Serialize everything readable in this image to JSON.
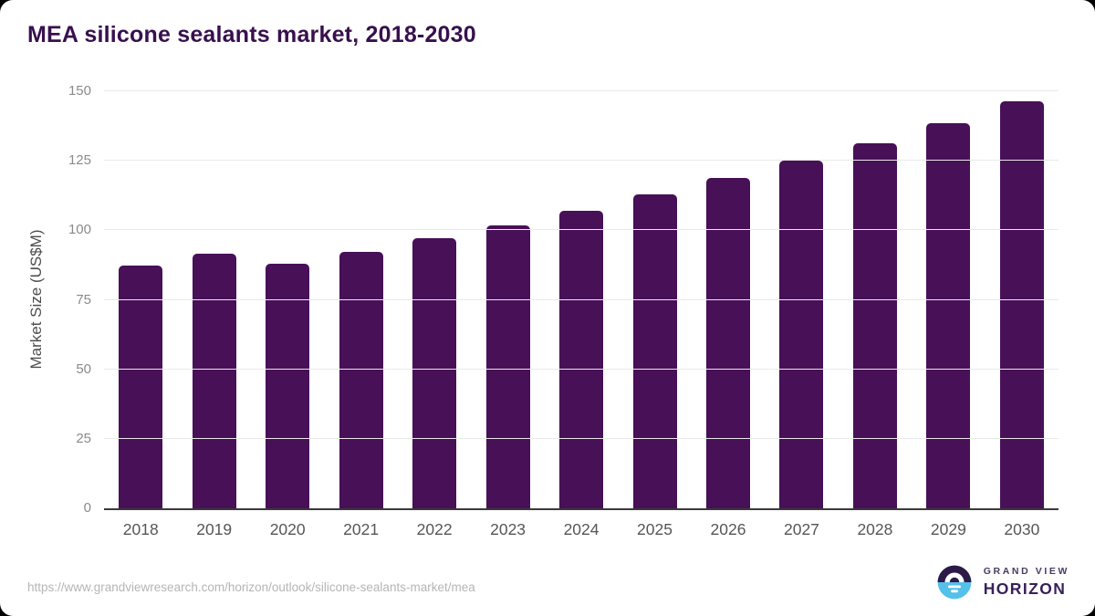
{
  "title": "MEA silicone sealants market, 2018-2030",
  "chart_data": {
    "type": "bar",
    "title": "MEA silicone sealants market, 2018-2030",
    "categories": [
      "2018",
      "2019",
      "2020",
      "2021",
      "2022",
      "2023",
      "2024",
      "2025",
      "2026",
      "2027",
      "2028",
      "2029",
      "2030"
    ],
    "values": [
      87.3,
      91.5,
      88.0,
      92.2,
      97.1,
      101.9,
      107.0,
      112.8,
      118.7,
      124.9,
      131.4,
      138.6,
      146.3
    ],
    "xlabel": "",
    "ylabel": "Market Size (US$M)",
    "ylim": [
      0,
      150
    ],
    "y_ticks": [
      0,
      25,
      50,
      75,
      100,
      125,
      150
    ],
    "grid": true,
    "legend": "none",
    "bar_color": "#471057"
  },
  "footer": {
    "source_url": "https://www.grandviewresearch.com/horizon/outlook/silicone-sealants-market/mea",
    "logo": {
      "icon": "horizon-sunset-icon",
      "brand_top": "GRAND VIEW",
      "brand_bottom": "HORIZON",
      "icon_top_color": "#2e1a47",
      "icon_bottom_color": "#55c0e9"
    }
  },
  "colors": {
    "background": "#000000",
    "card": "#ffffff",
    "title": "#38104e",
    "bar": "#471057",
    "gridline": "#e9e9e9",
    "axis_line": "#3a3a3a",
    "x_tick": "#565656",
    "y_tick": "#8a8a8a",
    "url_text": "#b5b5b5"
  }
}
